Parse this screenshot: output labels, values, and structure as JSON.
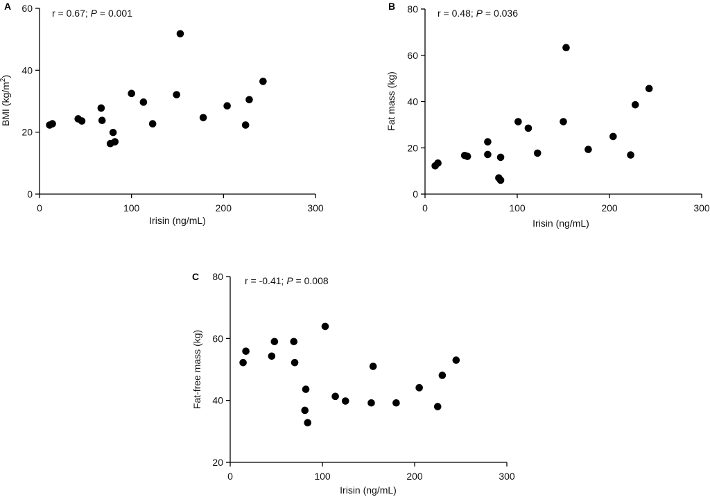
{
  "chart_data": [
    {
      "type": "scatter",
      "panel": "A",
      "annotation": {
        "r_text": "r = 0.67; ",
        "p_label": "P",
        "p_text": " = 0.001"
      },
      "xlabel": "Irisin (ng/mL)",
      "ylabel": {
        "main": "BMI (kg/m",
        "sup": "2",
        "end": ")"
      },
      "xlim": [
        0,
        300
      ],
      "ylim": [
        0,
        60
      ],
      "xticks": [
        0,
        100,
        200,
        300
      ],
      "yticks": [
        0,
        20,
        40,
        60
      ],
      "x": [
        11,
        14,
        42,
        46,
        67,
        68,
        77,
        80,
        82,
        100,
        113,
        123,
        149,
        153,
        178,
        204,
        224,
        228,
        243
      ],
      "y": [
        22.3,
        22.7,
        24.3,
        23.6,
        27.8,
        23.8,
        16.3,
        19.9,
        16.9,
        32.5,
        29.7,
        22.7,
        32.1,
        51.8,
        24.7,
        28.5,
        22.3,
        30.5,
        36.4
      ]
    },
    {
      "type": "scatter",
      "panel": "B",
      "annotation": {
        "r_text": "r = 0.48; ",
        "p_label": "P",
        "p_text": " = 0.036"
      },
      "xlabel": "Irisin (ng/mL)",
      "ylabel": {
        "main": "Fat mass (kg)",
        "sup": "",
        "end": ""
      },
      "xlim": [
        0,
        300
      ],
      "ylim": [
        0,
        80
      ],
      "xticks": [
        0,
        100,
        200,
        300
      ],
      "yticks": [
        0,
        20,
        40,
        60,
        80
      ],
      "x": [
        11,
        14,
        43,
        46,
        68,
        68,
        80,
        82,
        82,
        101,
        112,
        122,
        150,
        153,
        177,
        204,
        223,
        228,
        243
      ],
      "y": [
        12.2,
        13.4,
        16.7,
        16.3,
        22.6,
        17.1,
        7.0,
        6.0,
        15.9,
        31.3,
        28.5,
        17.7,
        31.3,
        63.3,
        19.3,
        24.9,
        16.9,
        38.6,
        45.6
      ]
    },
    {
      "type": "scatter",
      "panel": "C",
      "annotation": {
        "r_text": "r = -0.41; ",
        "p_label": "P",
        "p_text": " = 0.008"
      },
      "xlabel": "Irisin (ng/mL)",
      "ylabel": {
        "main": "Fat-free mass (kg)",
        "sup": "",
        "end": ""
      },
      "xlim": [
        0,
        300
      ],
      "ylim": [
        20,
        80
      ],
      "xticks": [
        0,
        100,
        200,
        300
      ],
      "yticks": [
        20,
        40,
        60,
        80
      ],
      "x": [
        14,
        17,
        45,
        48,
        69,
        70,
        81,
        82,
        84,
        103,
        114,
        125,
        153,
        155,
        180,
        205,
        225,
        230,
        245
      ],
      "y": [
        52.2,
        55.9,
        54.3,
        59.0,
        59.0,
        52.2,
        36.8,
        43.6,
        32.8,
        63.9,
        41.3,
        39.8,
        39.2,
        51.0,
        39.2,
        44.1,
        38.0,
        48.1,
        53.0
      ]
    }
  ]
}
